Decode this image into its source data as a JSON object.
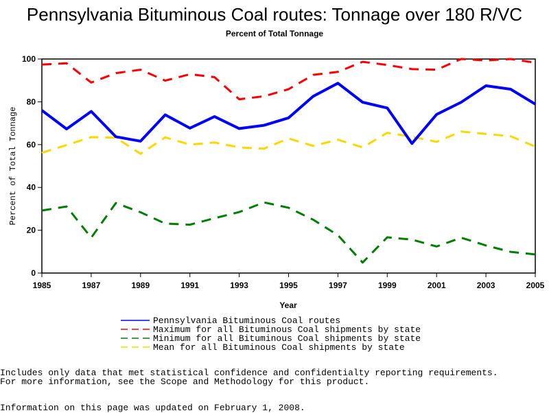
{
  "chart_data": {
    "type": "line",
    "title": "Pennsylvania Bituminous Coal routes: Tonnage over 180 R/VC",
    "subtitle": "Percent of Total Tonnage",
    "xlabel": "Year",
    "ylabel": "Percent of Total Tonnage",
    "xlim": [
      1985,
      2005
    ],
    "ylim": [
      0,
      100
    ],
    "x_ticks": [
      "1985",
      "1987",
      "1989",
      "1991",
      "1993",
      "1995",
      "1997",
      "1999",
      "2001",
      "2003",
      "2005"
    ],
    "y_ticks": [
      "0",
      "20",
      "40",
      "60",
      "80",
      "100"
    ],
    "x": [
      1985,
      1986,
      1987,
      1988,
      1989,
      1990,
      1991,
      1992,
      1993,
      1994,
      1995,
      1996,
      1997,
      1998,
      1999,
      2000,
      2001,
      2002,
      2003,
      2004,
      2005
    ],
    "legend_position": "bottom",
    "series": [
      {
        "name": "Pennsylvania Bituminous Coal routes",
        "color": "#0000ff",
        "style": "solid",
        "values": [
          76,
          67.3,
          75.5,
          63.7,
          61.6,
          73.9,
          67.7,
          73.1,
          67.5,
          69,
          72.5,
          82.6,
          88.7,
          79.8,
          77.1,
          60.5,
          74.1,
          79.8,
          87.5,
          85.9,
          78.9
        ]
      },
      {
        "name": "Maximum for all Bituminous Coal shipments by state",
        "color": "#ff0000",
        "style": "dashed",
        "values": [
          97.4,
          98,
          89,
          93.4,
          95,
          89.9,
          92.9,
          91.5,
          81.2,
          82.6,
          85.9,
          92.6,
          94,
          98.7,
          97.2,
          95.3,
          95,
          100,
          99.3,
          100,
          98.3
        ]
      },
      {
        "name": "Minimum for all Bituminous Coal shipments by state",
        "color": "#008000",
        "style": "dashed",
        "values": [
          29.2,
          31.1,
          16.5,
          32.7,
          28.4,
          23.1,
          22.6,
          25.6,
          28.5,
          33,
          30.5,
          24.9,
          17.7,
          4.9,
          16.7,
          15.6,
          12.4,
          16.5,
          12.9,
          9.9,
          8.7
        ]
      },
      {
        "name": "Mean for all Bituminous Coal shipments by state",
        "color": "#ffd700",
        "style": "dashed",
        "values": [
          56.2,
          59.8,
          63.5,
          63.2,
          55.7,
          63.4,
          60,
          61,
          58.7,
          58.1,
          62.9,
          59.4,
          62.3,
          58.7,
          65.5,
          63.7,
          61.3,
          66.1,
          65,
          63.9,
          59.1
        ]
      }
    ]
  },
  "notes": {
    "line1": "Includes only data that met statistical confidence and confidentialty reporting requirements.",
    "line2": "For more information, see the Scope and Methodology for this product.",
    "line3": "Information on this page was updated on February 1, 2008."
  }
}
